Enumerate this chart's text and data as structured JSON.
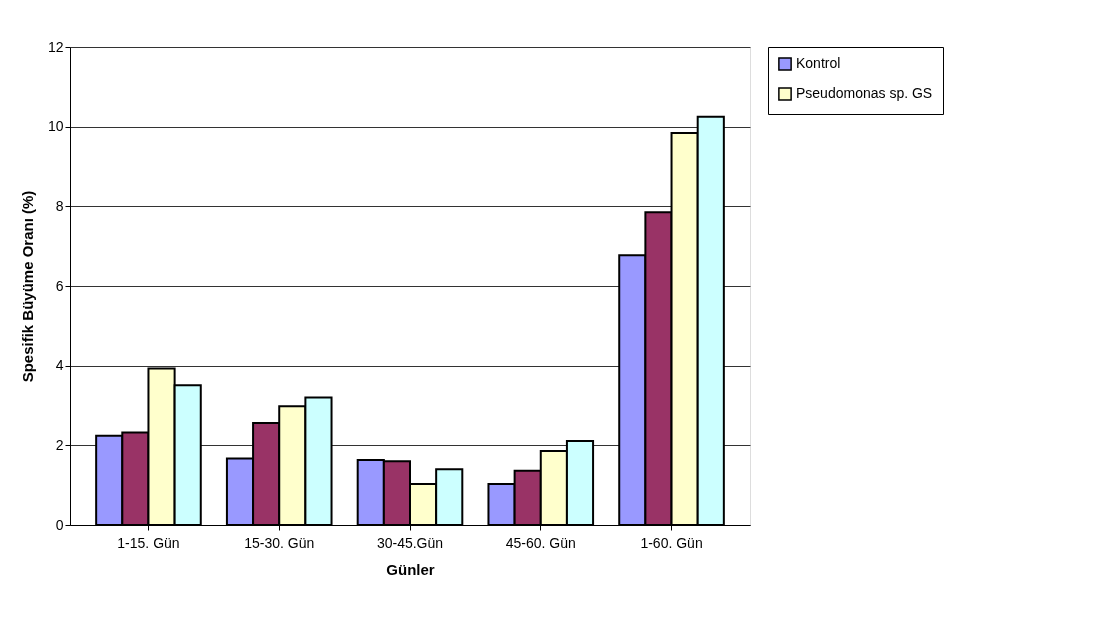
{
  "chart_data": {
    "type": "bar",
    "xlabel": "Günler",
    "ylabel": "Spesifik Büyüme Oranı (%)",
    "categories": [
      "1-15. Gün",
      "15-30. Gün",
      "30-45.Gün",
      "45-60. Gün",
      "1-60. Gün"
    ],
    "series": [
      {
        "name": "Kontrol",
        "color": "#9999ff",
        "values": [
          2.24,
          1.67,
          1.63,
          1.03,
          6.77
        ]
      },
      {
        "color": "#993366",
        "values": [
          2.32,
          2.56,
          1.6,
          1.36,
          7.85
        ]
      },
      {
        "name": "Pseudomonas sp. GS",
        "color": "#ffffcc",
        "values": [
          3.93,
          2.98,
          1.03,
          1.86,
          9.84
        ]
      },
      {
        "color": "#ccffff",
        "values": [
          3.51,
          3.2,
          1.4,
          2.11,
          10.25
        ]
      }
    ],
    "ylim": [
      0,
      12
    ],
    "yticks": [
      0,
      2,
      4,
      6,
      8,
      10,
      12
    ],
    "grid": "y",
    "legend": "right"
  }
}
